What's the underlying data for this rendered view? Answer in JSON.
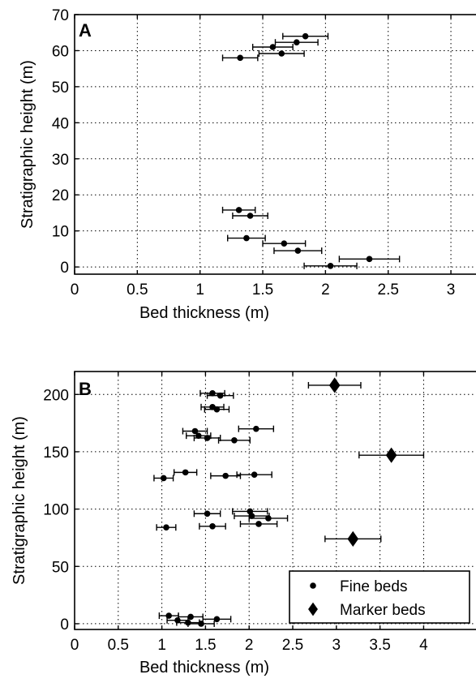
{
  "chart_data": [
    {
      "type": "scatter",
      "panel_label": "A",
      "xlabel": "Bed thickness (m)",
      "ylabel": "Stratigraphic height (m)",
      "xlim": [
        0,
        3.2
      ],
      "ylim": [
        -2,
        70
      ],
      "xticks": [
        0,
        0.5,
        1,
        1.5,
        2,
        2.5,
        3
      ],
      "xtick_labels": [
        "0",
        "0.5",
        "1",
        "1.5",
        "2",
        "2.5",
        "3"
      ],
      "yticks": [
        0,
        10,
        20,
        30,
        40,
        50,
        60,
        70
      ],
      "ytick_labels": [
        "0",
        "10",
        "20",
        "30",
        "40",
        "50",
        "60",
        "70"
      ],
      "grid": true,
      "series": [
        {
          "marker": "circle",
          "points": [
            {
              "x": 1.84,
              "y": 64.0,
              "xerr": 0.18
            },
            {
              "x": 1.77,
              "y": 62.3,
              "xerr": 0.17
            },
            {
              "x": 1.58,
              "y": 61.0,
              "xerr": 0.16
            },
            {
              "x": 1.65,
              "y": 59.2,
              "xerr": 0.18
            },
            {
              "x": 1.32,
              "y": 58.0,
              "xerr": 0.14
            },
            {
              "x": 1.31,
              "y": 15.8,
              "xerr": 0.13
            },
            {
              "x": 1.4,
              "y": 14.2,
              "xerr": 0.14
            },
            {
              "x": 1.37,
              "y": 8.0,
              "xerr": 0.15
            },
            {
              "x": 1.67,
              "y": 6.5,
              "xerr": 0.17
            },
            {
              "x": 1.78,
              "y": 4.5,
              "xerr": 0.19
            },
            {
              "x": 2.35,
              "y": 2.2,
              "xerr": 0.24
            },
            {
              "x": 2.04,
              "y": 0.3,
              "xerr": 0.21
            }
          ]
        }
      ]
    },
    {
      "type": "scatter",
      "panel_label": "B",
      "xlabel": "Bed thickness (m)",
      "ylabel": "Stratigraphic height (m)",
      "xlim": [
        0,
        4.6
      ],
      "ylim": [
        -5,
        220
      ],
      "xticks": [
        0,
        0.5,
        1,
        1.5,
        2,
        2.5,
        3,
        3.5,
        4
      ],
      "xtick_labels": [
        "0",
        "0.5",
        "1",
        "1.5",
        "2",
        "2.5",
        "3",
        "3.5",
        "4"
      ],
      "yticks": [
        0,
        50,
        100,
        150,
        200
      ],
      "ytick_labels": [
        "0",
        "50",
        "100",
        "150",
        "200"
      ],
      "grid": true,
      "legend": {
        "position": "bottom-right",
        "entries": [
          {
            "label": "Fine beds",
            "marker": "circle"
          },
          {
            "label": "Marker beds",
            "marker": "diamond"
          }
        ]
      },
      "series": [
        {
          "name": "Fine beds",
          "marker": "circle",
          "points": [
            {
              "x": 1.58,
              "y": 201,
              "xerr": 0.14
            },
            {
              "x": 1.67,
              "y": 199,
              "xerr": 0.15
            },
            {
              "x": 1.58,
              "y": 189,
              "xerr": 0.13
            },
            {
              "x": 1.63,
              "y": 187,
              "xerr": 0.14
            },
            {
              "x": 2.08,
              "y": 170,
              "xerr": 0.2
            },
            {
              "x": 1.38,
              "y": 168,
              "xerr": 0.14
            },
            {
              "x": 1.42,
              "y": 164,
              "xerr": 0.14
            },
            {
              "x": 1.52,
              "y": 162,
              "xerr": 0.15
            },
            {
              "x": 1.83,
              "y": 160,
              "xerr": 0.18
            },
            {
              "x": 1.27,
              "y": 132,
              "xerr": 0.13
            },
            {
              "x": 2.06,
              "y": 130,
              "xerr": 0.2
            },
            {
              "x": 1.73,
              "y": 129,
              "xerr": 0.17
            },
            {
              "x": 1.02,
              "y": 127,
              "xerr": 0.11
            },
            {
              "x": 1.52,
              "y": 96,
              "xerr": 0.15
            },
            {
              "x": 2.01,
              "y": 98,
              "xerr": 0.2
            },
            {
              "x": 2.03,
              "y": 94,
              "xerr": 0.2
            },
            {
              "x": 2.22,
              "y": 92,
              "xerr": 0.22
            },
            {
              "x": 1.58,
              "y": 85,
              "xerr": 0.15
            },
            {
              "x": 2.11,
              "y": 87,
              "xerr": 0.21
            },
            {
              "x": 1.05,
              "y": 84,
              "xerr": 0.11
            },
            {
              "x": 1.08,
              "y": 7,
              "xerr": 0.11
            },
            {
              "x": 1.33,
              "y": 6,
              "xerr": 0.14
            },
            {
              "x": 1.63,
              "y": 4,
              "xerr": 0.16
            },
            {
              "x": 1.18,
              "y": 3,
              "xerr": 0.12
            },
            {
              "x": 1.3,
              "y": 1,
              "xerr": 0.13
            },
            {
              "x": 1.45,
              "y": 0,
              "xerr": 0.15
            }
          ]
        },
        {
          "name": "Marker beds",
          "marker": "diamond",
          "points": [
            {
              "x": 2.98,
              "y": 208,
              "xerr": 0.3
            },
            {
              "x": 3.63,
              "y": 147,
              "xerr": 0.37
            },
            {
              "x": 3.19,
              "y": 74,
              "xerr": 0.32
            }
          ]
        }
      ]
    }
  ]
}
